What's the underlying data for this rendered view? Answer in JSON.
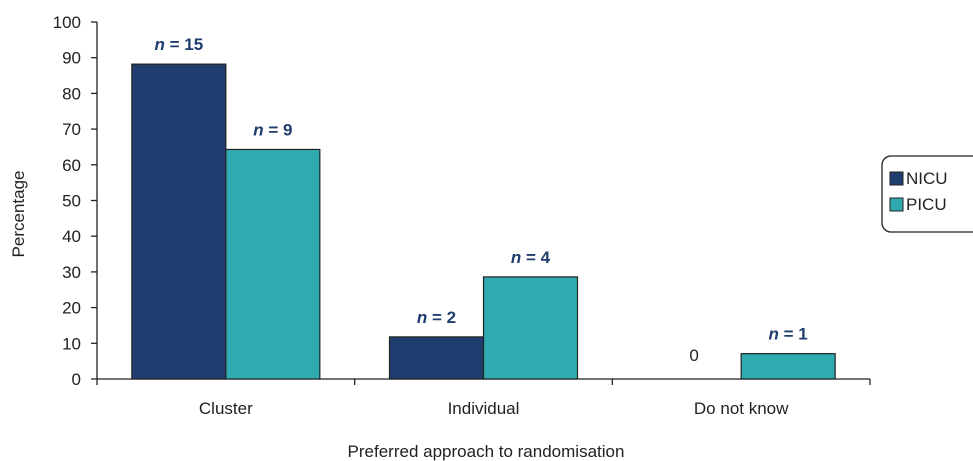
{
  "chart_data": {
    "type": "bar",
    "xlabel": "Preferred approach to randomisation",
    "ylabel": "Percentage",
    "ylim": [
      0,
      100
    ],
    "yticks": [
      0,
      10,
      20,
      30,
      40,
      50,
      60,
      70,
      80,
      90,
      100
    ],
    "categories": [
      "Cluster",
      "Individual",
      "Do not know"
    ],
    "series": [
      {
        "name": "NICU",
        "color": "#1f3d6e",
        "values": [
          88.2,
          11.8,
          0
        ],
        "counts": [
          15,
          2,
          0
        ],
        "labels": [
          "15",
          "2",
          "0"
        ]
      },
      {
        "name": "PICU",
        "color": "#2eaab0",
        "values": [
          64.3,
          28.6,
          7.1
        ],
        "counts": [
          9,
          4,
          1
        ],
        "labels": [
          "9",
          "4",
          "1"
        ]
      }
    ],
    "label_prefix": "n",
    "label_equals": "=",
    "legend_position": "right",
    "grid": false
  }
}
